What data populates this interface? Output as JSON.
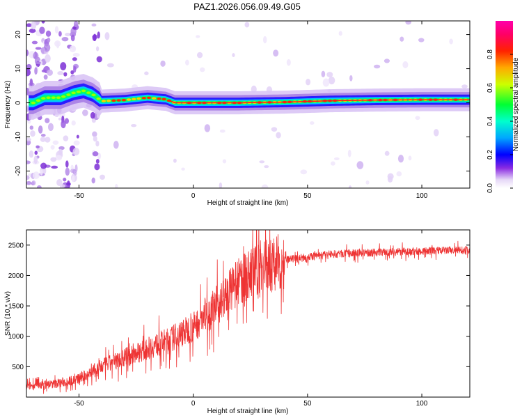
{
  "figure": {
    "title": "PAZ1.2026.056.09.49.G05"
  },
  "chart_data": [
    {
      "type": "heatmap",
      "xlabel": "Height of straight line (km)",
      "ylabel": "Frequency (Hz)",
      "xlim": [
        -73,
        121
      ],
      "ylim": [
        -25,
        24
      ],
      "xticks": [
        -50,
        0,
        50,
        100
      ],
      "xtick_labels": [
        "-50",
        "0",
        "50",
        "100"
      ],
      "yticks": [
        -20,
        -10,
        0,
        10,
        20
      ],
      "ytick_labels": [
        "-20",
        "-10",
        "0",
        "10",
        "20"
      ],
      "ridge": {
        "description_points_x": [
          -70,
          -65,
          -58,
          -52,
          -48,
          -44,
          -40,
          -30,
          -20,
          -12,
          -8,
          0,
          20,
          40,
          60,
          80,
          100,
          121
        ],
        "description_points_y": [
          0.0,
          1.5,
          1.5,
          3.0,
          3.5,
          2.5,
          0.5,
          0.8,
          1.5,
          1.0,
          0.0,
          0.0,
          0.0,
          0.2,
          0.6,
          0.8,
          0.9,
          0.9
        ]
      },
      "grid": false,
      "colorbar": {
        "label": "Normalized spectral amplitude",
        "ticks": [
          0.0,
          0.2,
          0.4,
          0.6,
          0.8
        ],
        "tick_labels": [
          "0.0",
          "0.2",
          "0.4",
          "0.6",
          "0.8"
        ],
        "range": [
          0,
          1
        ]
      }
    },
    {
      "type": "line",
      "xlabel": "Height of straight line (km)",
      "ylabel": "SNR (10 * v/v)",
      "xlim": [
        -73,
        121
      ],
      "ylim": [
        0,
        2750
      ],
      "xticks": [
        -50,
        0,
        50,
        100
      ],
      "xtick_labels": [
        "-50",
        "0",
        "50",
        "100"
      ],
      "yticks": [
        500,
        1000,
        1500,
        2000,
        2500
      ],
      "ytick_labels": [
        "500",
        "1000",
        "1500",
        "2000",
        "2500"
      ],
      "grid": false,
      "series": [
        {
          "color": "#ee3333",
          "trend_x": [
            -73,
            -60,
            -50,
            -40,
            -30,
            -20,
            -10,
            0,
            10,
            20,
            30,
            40,
            50,
            60,
            80,
            100,
            121
          ],
          "trend_y": [
            180,
            220,
            300,
            500,
            650,
            800,
            950,
            1150,
            1500,
            1900,
            2150,
            2250,
            2300,
            2350,
            2380,
            2400,
            2420
          ]
        }
      ]
    }
  ]
}
